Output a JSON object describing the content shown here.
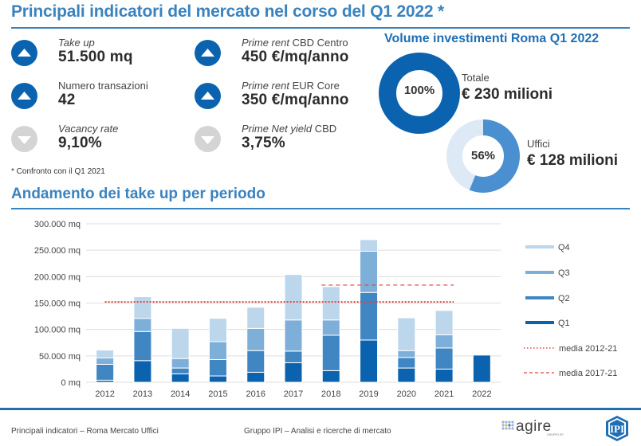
{
  "header": {
    "title": "Principali indicatori del mercato nel corso del Q1 2022 *"
  },
  "kpis": [
    {
      "label_italic": "Take up",
      "label_rest": "",
      "value": "51.500 mq",
      "trend": "up",
      "icon": "arrow-up-icon"
    },
    {
      "label_italic": "",
      "label_rest": "Numero transazioni",
      "value": "42",
      "trend": "up",
      "icon": "arrow-up-icon"
    },
    {
      "label_italic": "Vacancy rate",
      "label_rest": "",
      "value": "9,10%",
      "trend": "down",
      "icon": "arrow-down-icon"
    },
    {
      "label_italic": "Prime rent",
      "label_rest": " CBD Centro",
      "value": "450 €/mq/anno",
      "trend": "up",
      "icon": "arrow-up-icon"
    },
    {
      "label_italic": "Prime rent",
      "label_rest": " EUR Core",
      "value": "350 €/mq/anno",
      "trend": "up",
      "icon": "arrow-up-icon"
    },
    {
      "label_italic": "Prime Net yield",
      "label_rest": " CBD",
      "value": "3,75%",
      "trend": "down",
      "icon": "arrow-down-icon"
    }
  ],
  "note": "* Confronto con il Q1 2021",
  "investments": {
    "title": "Volume investimenti Roma Q1 2022",
    "total": {
      "percent_label": "100%",
      "fraction": 1.0,
      "label": "Totale",
      "value": "€ 230 milioni"
    },
    "offices": {
      "percent_label": "56%",
      "fraction": 0.56,
      "label": "Uffici",
      "value": "€ 128 milioni"
    }
  },
  "colors": {
    "accent": "#3a83bf",
    "up": "#0b63b0",
    "down": "#d4d4d4",
    "q1": "#0b63b0",
    "q2": "#3f86c3",
    "q3": "#7eafd9",
    "q4": "#bcd6ec",
    "avg_line": "#e0453c"
  },
  "chart_data": {
    "type": "bar",
    "stacked": true,
    "title": "Andamento dei take up per periodo",
    "xlabel": "",
    "ylabel": "",
    "ylim": [
      0,
      300000
    ],
    "yticks": [
      0,
      50000,
      100000,
      150000,
      200000,
      250000,
      300000
    ],
    "ytick_labels": [
      "0 mq",
      "50.000 mq",
      "100.000 mq",
      "150.000 mq",
      "200.000 mq",
      "250.000 mq",
      "300.000 mq"
    ],
    "grid": true,
    "legend_position": "right",
    "categories": [
      "2012",
      "2013",
      "2014",
      "2015",
      "2016",
      "2017",
      "2018",
      "2019",
      "2020",
      "2021",
      "2022"
    ],
    "series": [
      {
        "name": "Q1",
        "values": [
          4000,
          41000,
          16000,
          12000,
          19000,
          37000,
          22000,
          80000,
          27000,
          25000,
          51500
        ]
      },
      {
        "name": "Q2",
        "values": [
          30000,
          55000,
          11000,
          31000,
          41000,
          22000,
          67000,
          90000,
          20000,
          40000,
          0
        ]
      },
      {
        "name": "Q3",
        "values": [
          12000,
          25000,
          18000,
          34000,
          42000,
          59000,
          29000,
          78000,
          13000,
          25000,
          0
        ]
      },
      {
        "name": "Q4",
        "values": [
          15000,
          41000,
          57000,
          44000,
          40000,
          86000,
          63000,
          22000,
          62000,
          46000,
          0
        ]
      }
    ],
    "reference_lines": [
      {
        "name": "media 2012-21",
        "value": 152000,
        "style": "dotted",
        "from": "2012",
        "to": "2021"
      },
      {
        "name": "media 2017-21",
        "value": 184000,
        "style": "dashed",
        "from": "2018",
        "to": "2021"
      }
    ],
    "legend": [
      "Q4",
      "Q3",
      "Q2",
      "Q1",
      "media 2012-21",
      "media 2017-21"
    ]
  },
  "footer": {
    "left": "Principali indicatori – Roma Mercato Uffici",
    "center": "Gruppo IPI – Analisi e ricerche di mercato",
    "logo1": "agire",
    "logo1_sub": "GRUPPO IPI",
    "logo2": "IPI"
  }
}
